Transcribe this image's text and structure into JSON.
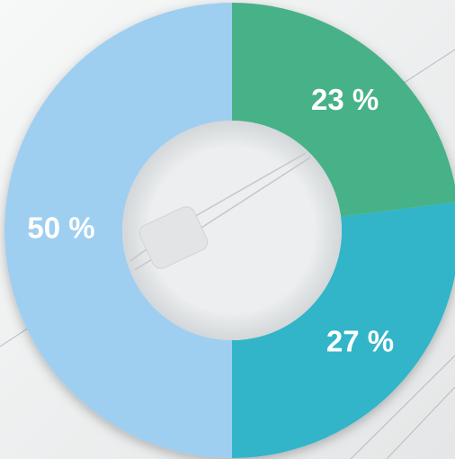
{
  "chart_data": {
    "type": "donut",
    "values": [
      23,
      27,
      50
    ],
    "value_labels": [
      "23 %",
      "27 %",
      "50 %"
    ],
    "colors": [
      "#47b287",
      "#33b5c9",
      "#9fcff0"
    ]
  }
}
